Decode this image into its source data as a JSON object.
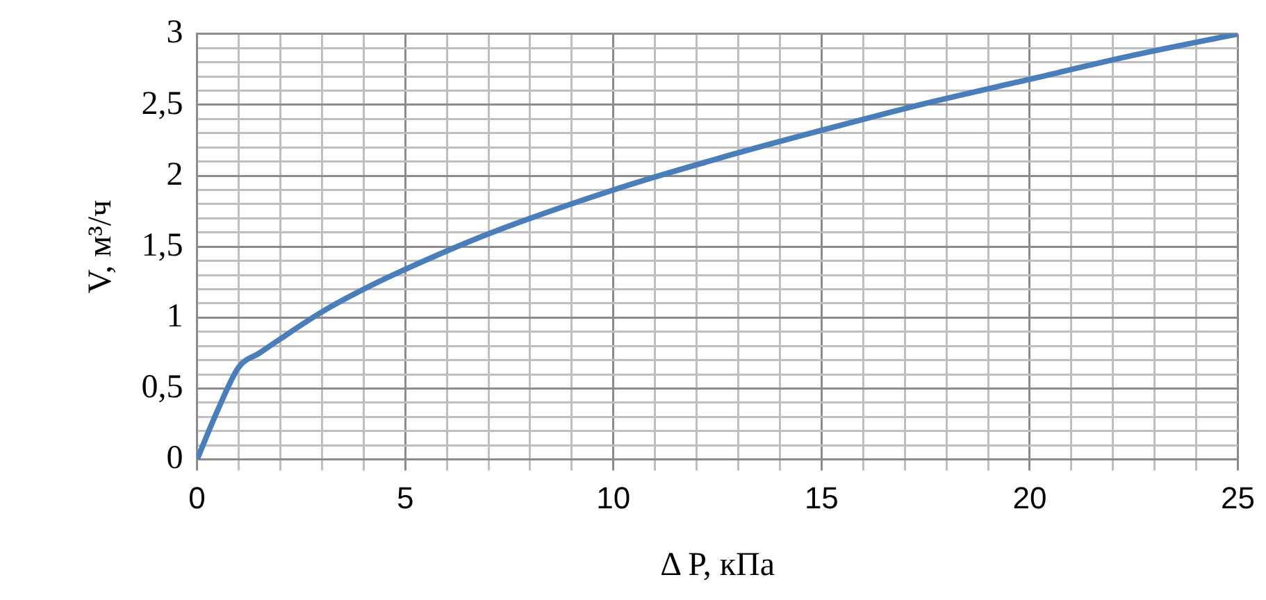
{
  "chart_data": {
    "type": "line",
    "xlabel": "Δ P, кПа",
    "ylabel": "V, м³/ч",
    "x": [
      0,
      0.5,
      1,
      1.5,
      2,
      3,
      4,
      5,
      7,
      10,
      12.5,
      15,
      17.5,
      20,
      22.5,
      25
    ],
    "series": [
      {
        "color": "#4a7ebb",
        "values": [
          0,
          0.35,
          0.65,
          0.75,
          0.85,
          1.04,
          1.2,
          1.34,
          1.59,
          1.9,
          2.12,
          2.32,
          2.51,
          2.68,
          2.85,
          3
        ]
      }
    ],
    "xlim": [
      0,
      25
    ],
    "xticks": [
      0,
      {
        "value": 1,
        "label": null
      },
      {
        "value": 2,
        "label": null
      },
      {
        "value": 3,
        "label": null
      },
      {
        "value": 4,
        "label": null
      },
      5,
      {
        "value": 6,
        "label": null
      },
      {
        "value": 7,
        "label": null
      },
      {
        "value": 8,
        "label": null
      },
      {
        "value": 9,
        "label": null
      },
      10,
      {
        "value": 11,
        "label": null
      },
      {
        "value": 12,
        "label": null
      },
      {
        "value": 13,
        "label": null
      },
      {
        "value": 14,
        "label": null
      },
      15,
      {
        "value": 16,
        "label": null
      },
      {
        "value": 17,
        "label": null
      },
      {
        "value": 18,
        "label": null
      },
      {
        "value": 19,
        "label": null
      },
      20,
      {
        "value": 21,
        "label": null
      },
      {
        "value": 22,
        "label": null
      },
      {
        "value": 23,
        "label": null
      },
      {
        "value": 24,
        "label": null
      },
      25
    ],
    "ylim": [
      0,
      3
    ],
    "yticks": [
      0,
      {
        "value": 0.1,
        "label": null
      },
      {
        "value": 0.2,
        "label": null
      },
      {
        "value": 0.3,
        "label": null
      },
      {
        "value": 0.4,
        "label": null
      },
      {
        "value": 0.5,
        "label": "0,5"
      },
      {
        "value": 0.6,
        "label": null
      },
      {
        "value": 0.7,
        "label": null
      },
      {
        "value": 0.8,
        "label": null
      },
      {
        "value": 0.9,
        "label": null
      },
      1,
      {
        "value": 1.1,
        "label": null
      },
      {
        "value": 1.2,
        "label": null
      },
      {
        "value": 1.3,
        "label": null
      },
      {
        "value": 1.4,
        "label": null
      },
      {
        "value": 1.5,
        "label": "1,5"
      },
      {
        "value": 1.6,
        "label": null
      },
      {
        "value": 1.7,
        "label": null
      },
      {
        "value": 1.8,
        "label": null
      },
      {
        "value": 1.9,
        "label": null
      },
      2,
      {
        "value": 2.1,
        "label": null
      },
      {
        "value": 2.2,
        "label": null
      },
      {
        "value": 2.3,
        "label": null
      },
      {
        "value": 2.4,
        "label": null
      },
      {
        "value": 2.5,
        "label": "2,5"
      },
      {
        "value": 2.6,
        "label": null
      },
      {
        "value": 2.7,
        "label": null
      },
      {
        "value": 2.8,
        "label": null
      },
      {
        "value": 2.9,
        "label": null
      },
      3
    ],
    "grid": true,
    "marker": "none",
    "line_style": "solid",
    "legend": false
  }
}
